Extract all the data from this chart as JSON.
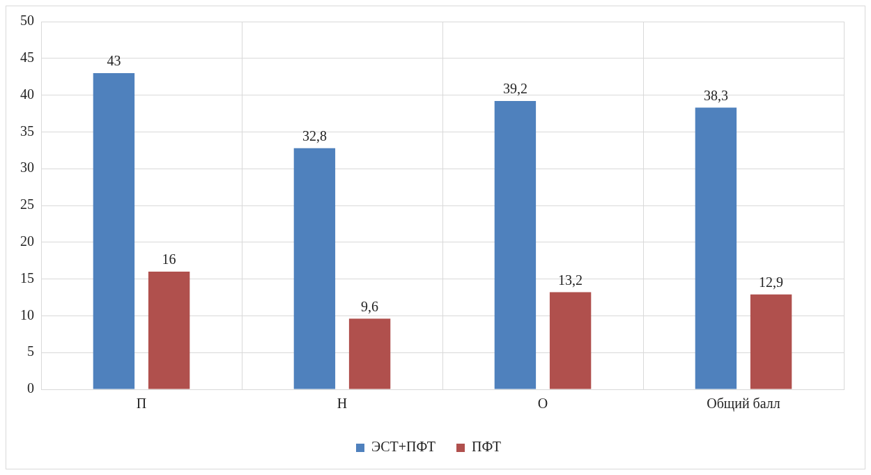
{
  "chart_data": {
    "type": "bar",
    "categories": [
      "П",
      "Н",
      "О",
      "Общий балл"
    ],
    "series": [
      {
        "name": "ЭСТ+ПФТ",
        "color": "#4f81bd",
        "values": [
          43,
          32.8,
          39.2,
          38.3
        ],
        "value_labels": [
          "43",
          "32,8",
          "39,2",
          "38,3"
        ]
      },
      {
        "name": "ПФТ",
        "color": "#b0504d",
        "values": [
          16,
          9.6,
          13.2,
          12.9
        ],
        "value_labels": [
          "16",
          "9,6",
          "13,2",
          "12,9"
        ]
      }
    ],
    "ylim": [
      0,
      50
    ],
    "yticks": [
      0,
      5,
      10,
      15,
      20,
      25,
      30,
      35,
      40,
      45,
      50
    ],
    "grid": true,
    "legend": "bottom"
  }
}
